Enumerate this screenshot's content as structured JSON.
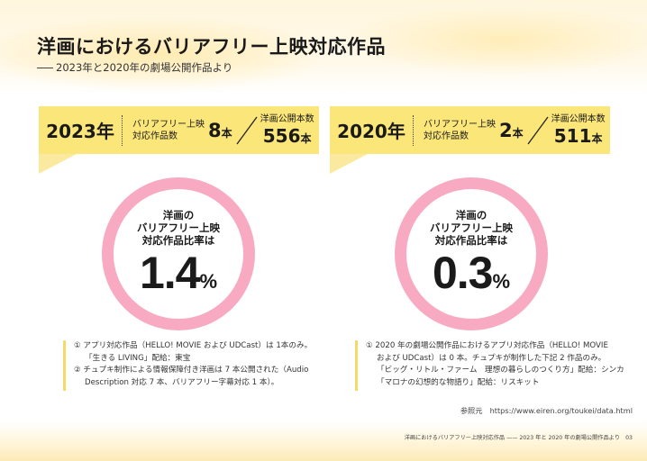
{
  "header": {
    "title": "洋画におけるバリアフリー上映対応作品",
    "subtitle": "2023年と2020年の劇場公開作品より"
  },
  "panels": [
    {
      "year": "2023年",
      "bf_label_line1": "バリアフリー上映",
      "bf_label_line2": "対応作品数",
      "count": "8",
      "count_unit": "本",
      "total_label": "洋画公開本数",
      "total": "556",
      "total_unit": "本",
      "rate_label_line1": "洋画の",
      "rate_label_line2": "バリアフリー上映",
      "rate_label_line3": "対応作品比率は",
      "rate": "1.4",
      "rate_unit": "%",
      "notes": [
        "① アプリ対応作品（HELLO! MOVIE および UDCast）は 1本のみ。",
        "「生きる LIVING」配給：東宝",
        "② チュプキ制作による情報保障付き洋画は 7 本公開された（Audio",
        "Description 対応 7 本、バリアフリー字幕対応 1 本）。"
      ]
    },
    {
      "year": "2020年",
      "bf_label_line1": "バリアフリー上映",
      "bf_label_line2": "対応作品数",
      "count": "2",
      "count_unit": "本",
      "total_label": "洋画公開本数",
      "total": "511",
      "total_unit": "本",
      "rate_label_line1": "洋画の",
      "rate_label_line2": "バリアフリー上映",
      "rate_label_line3": "対応作品比率は",
      "rate": "0.3",
      "rate_unit": "%",
      "notes": [
        "① 2020 年の劇場公開作品におけるアプリ対応作品（HELLO! MOVIE",
        "および UDCast）は 0 本。チュプキが制作した下記 2 作品のみ。",
        "「ビッグ・リトル・ファーム　理想の暮らしのつくり方」配給：シンカ",
        "「マロナの幻想的な物語り」配給：リスキット"
      ]
    }
  ],
  "source": "参照元　https://www.eiren.org/toukei/data.html",
  "footer": "洋画におけるバリアフリー上映対応作品 —— 2023 年と 2020 年の劇場公開作品より　03",
  "colors": {
    "bar_yellow": "#fbe67a",
    "ring_pink": "#f9aac3",
    "note_border": "#f5d96a"
  }
}
